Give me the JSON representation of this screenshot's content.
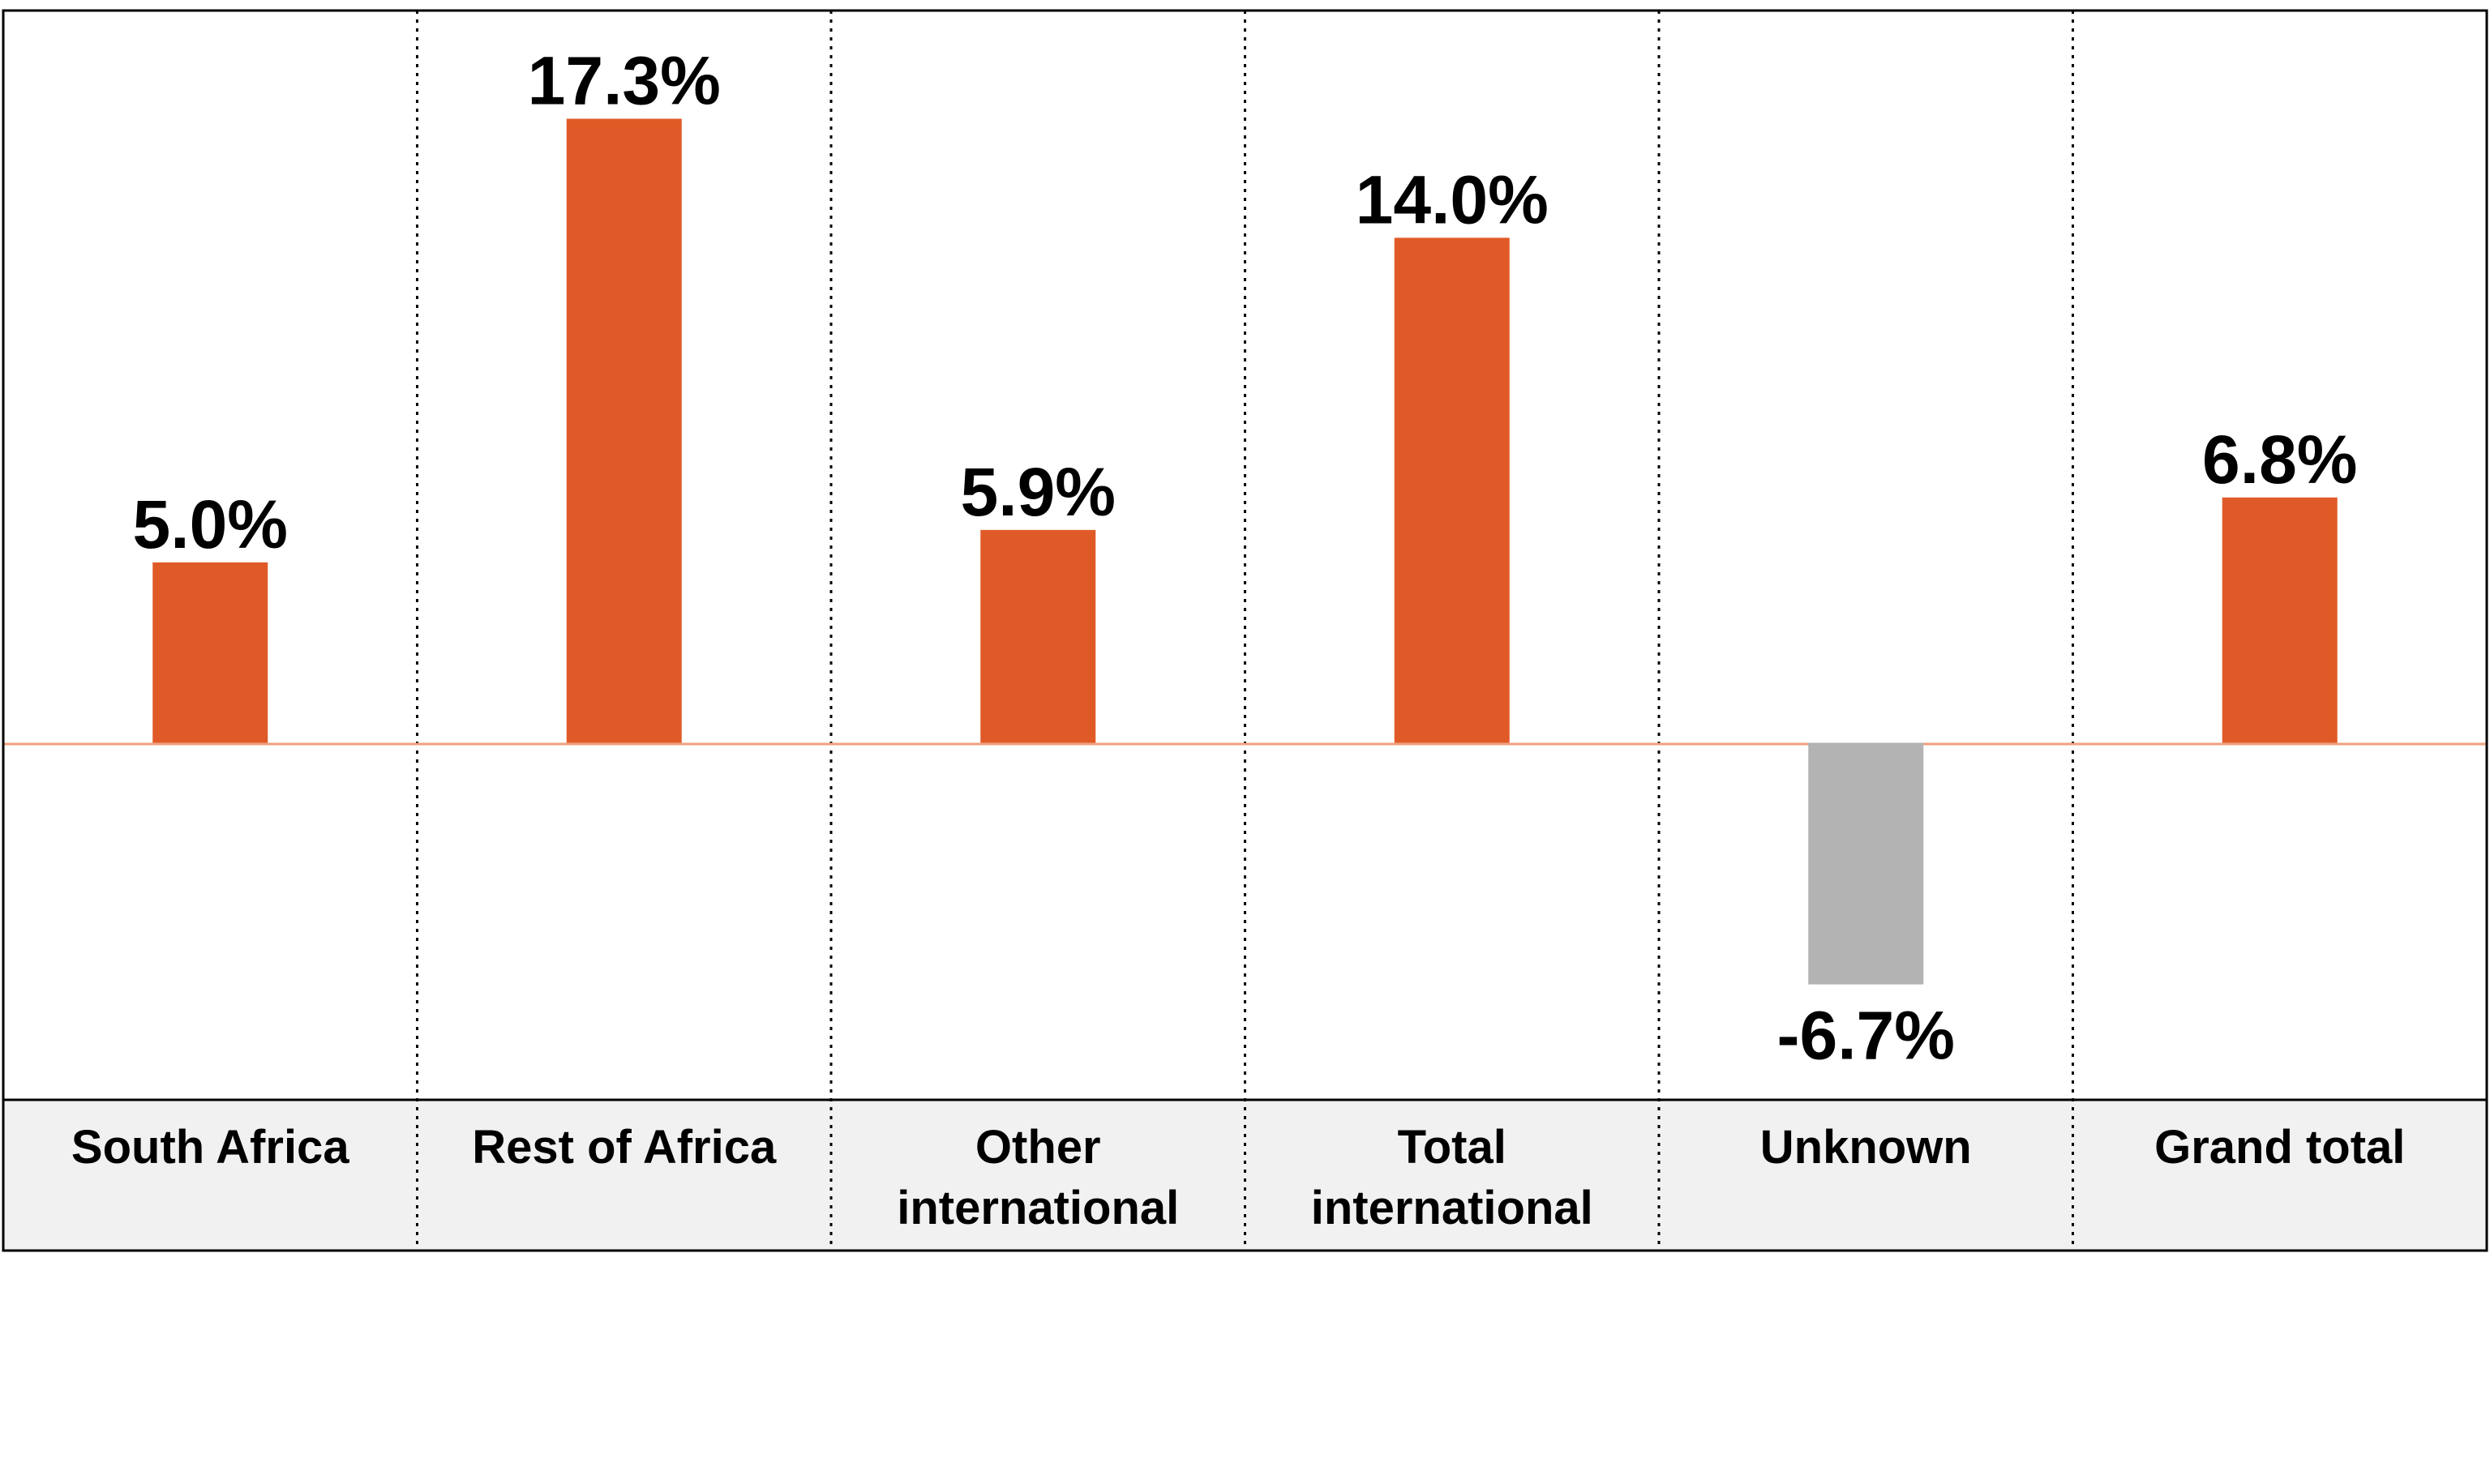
{
  "chart_data": {
    "type": "bar",
    "categories": [
      [
        "South Africa"
      ],
      [
        "Rest of Africa"
      ],
      [
        "Other",
        "international"
      ],
      [
        "Total",
        "international"
      ],
      [
        "Unknown"
      ],
      [
        "Grand total"
      ]
    ],
    "values": [
      5.0,
      17.3,
      5.9,
      14.0,
      -6.7,
      6.8
    ],
    "value_labels": [
      "5.0%",
      "17.3%",
      "5.9%",
      "14.0%",
      "-6.7%",
      "6.8%"
    ],
    "ylim": [
      -9.9,
      20.3
    ],
    "grid": false,
    "legend": "none",
    "colors": {
      "positive": "#e05a27",
      "negative": "#b3b3b3",
      "baseline": "#f0a07c",
      "category_band": "#f1f1f1",
      "border": "#000000"
    }
  }
}
